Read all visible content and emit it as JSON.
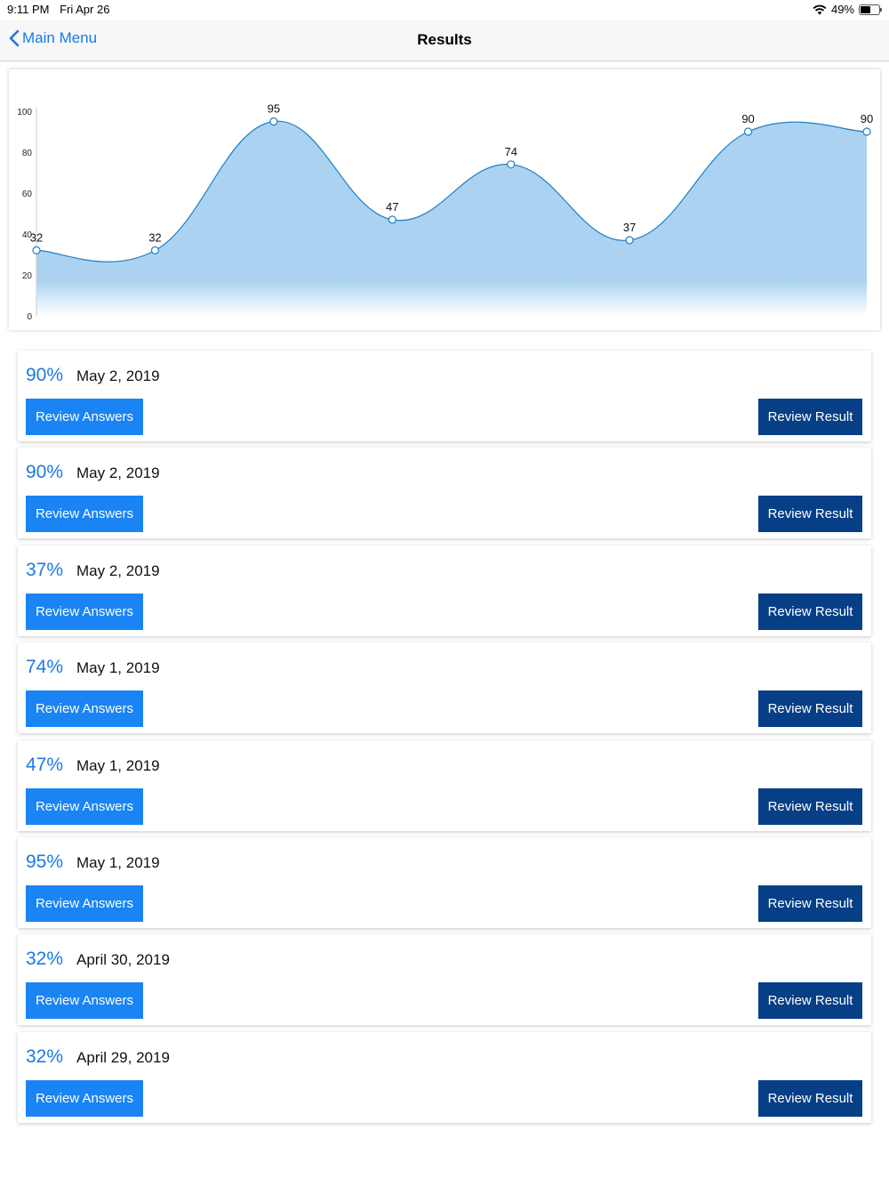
{
  "status": {
    "time": "9:11 PM",
    "date": "Fri Apr 26",
    "battery": "49%",
    "battery_level": 0.49
  },
  "nav": {
    "back_label": "Main Menu",
    "title": "Results"
  },
  "chart_data": {
    "type": "area",
    "x": [
      1,
      2,
      3,
      4,
      5,
      6,
      7,
      8
    ],
    "values": [
      32,
      32,
      95,
      47,
      74,
      37,
      90,
      90
    ],
    "y_ticks": [
      0,
      20,
      40,
      60,
      80,
      100
    ],
    "ylim": [
      0,
      100
    ],
    "fill_color": "#abd3f1",
    "line_color": "#1e7fc8"
  },
  "results": [
    {
      "score": "90%",
      "date": "May 2, 2019",
      "answers_label": "Review Answers",
      "result_label": "Review Result"
    },
    {
      "score": "90%",
      "date": "May 2, 2019",
      "answers_label": "Review Answers",
      "result_label": "Review Result"
    },
    {
      "score": "37%",
      "date": "May 2, 2019",
      "answers_label": "Review Answers",
      "result_label": "Review Result"
    },
    {
      "score": "74%",
      "date": "May 1, 2019",
      "answers_label": "Review Answers",
      "result_label": "Review Result"
    },
    {
      "score": "47%",
      "date": "May 1, 2019",
      "answers_label": "Review Answers",
      "result_label": "Review Result"
    },
    {
      "score": "95%",
      "date": "May 1, 2019",
      "answers_label": "Review Answers",
      "result_label": "Review Result"
    },
    {
      "score": "32%",
      "date": "April 30, 2019",
      "answers_label": "Review Answers",
      "result_label": "Review Result"
    },
    {
      "score": "32%",
      "date": "April 29, 2019",
      "answers_label": "Review Answers",
      "result_label": "Review Result"
    }
  ]
}
